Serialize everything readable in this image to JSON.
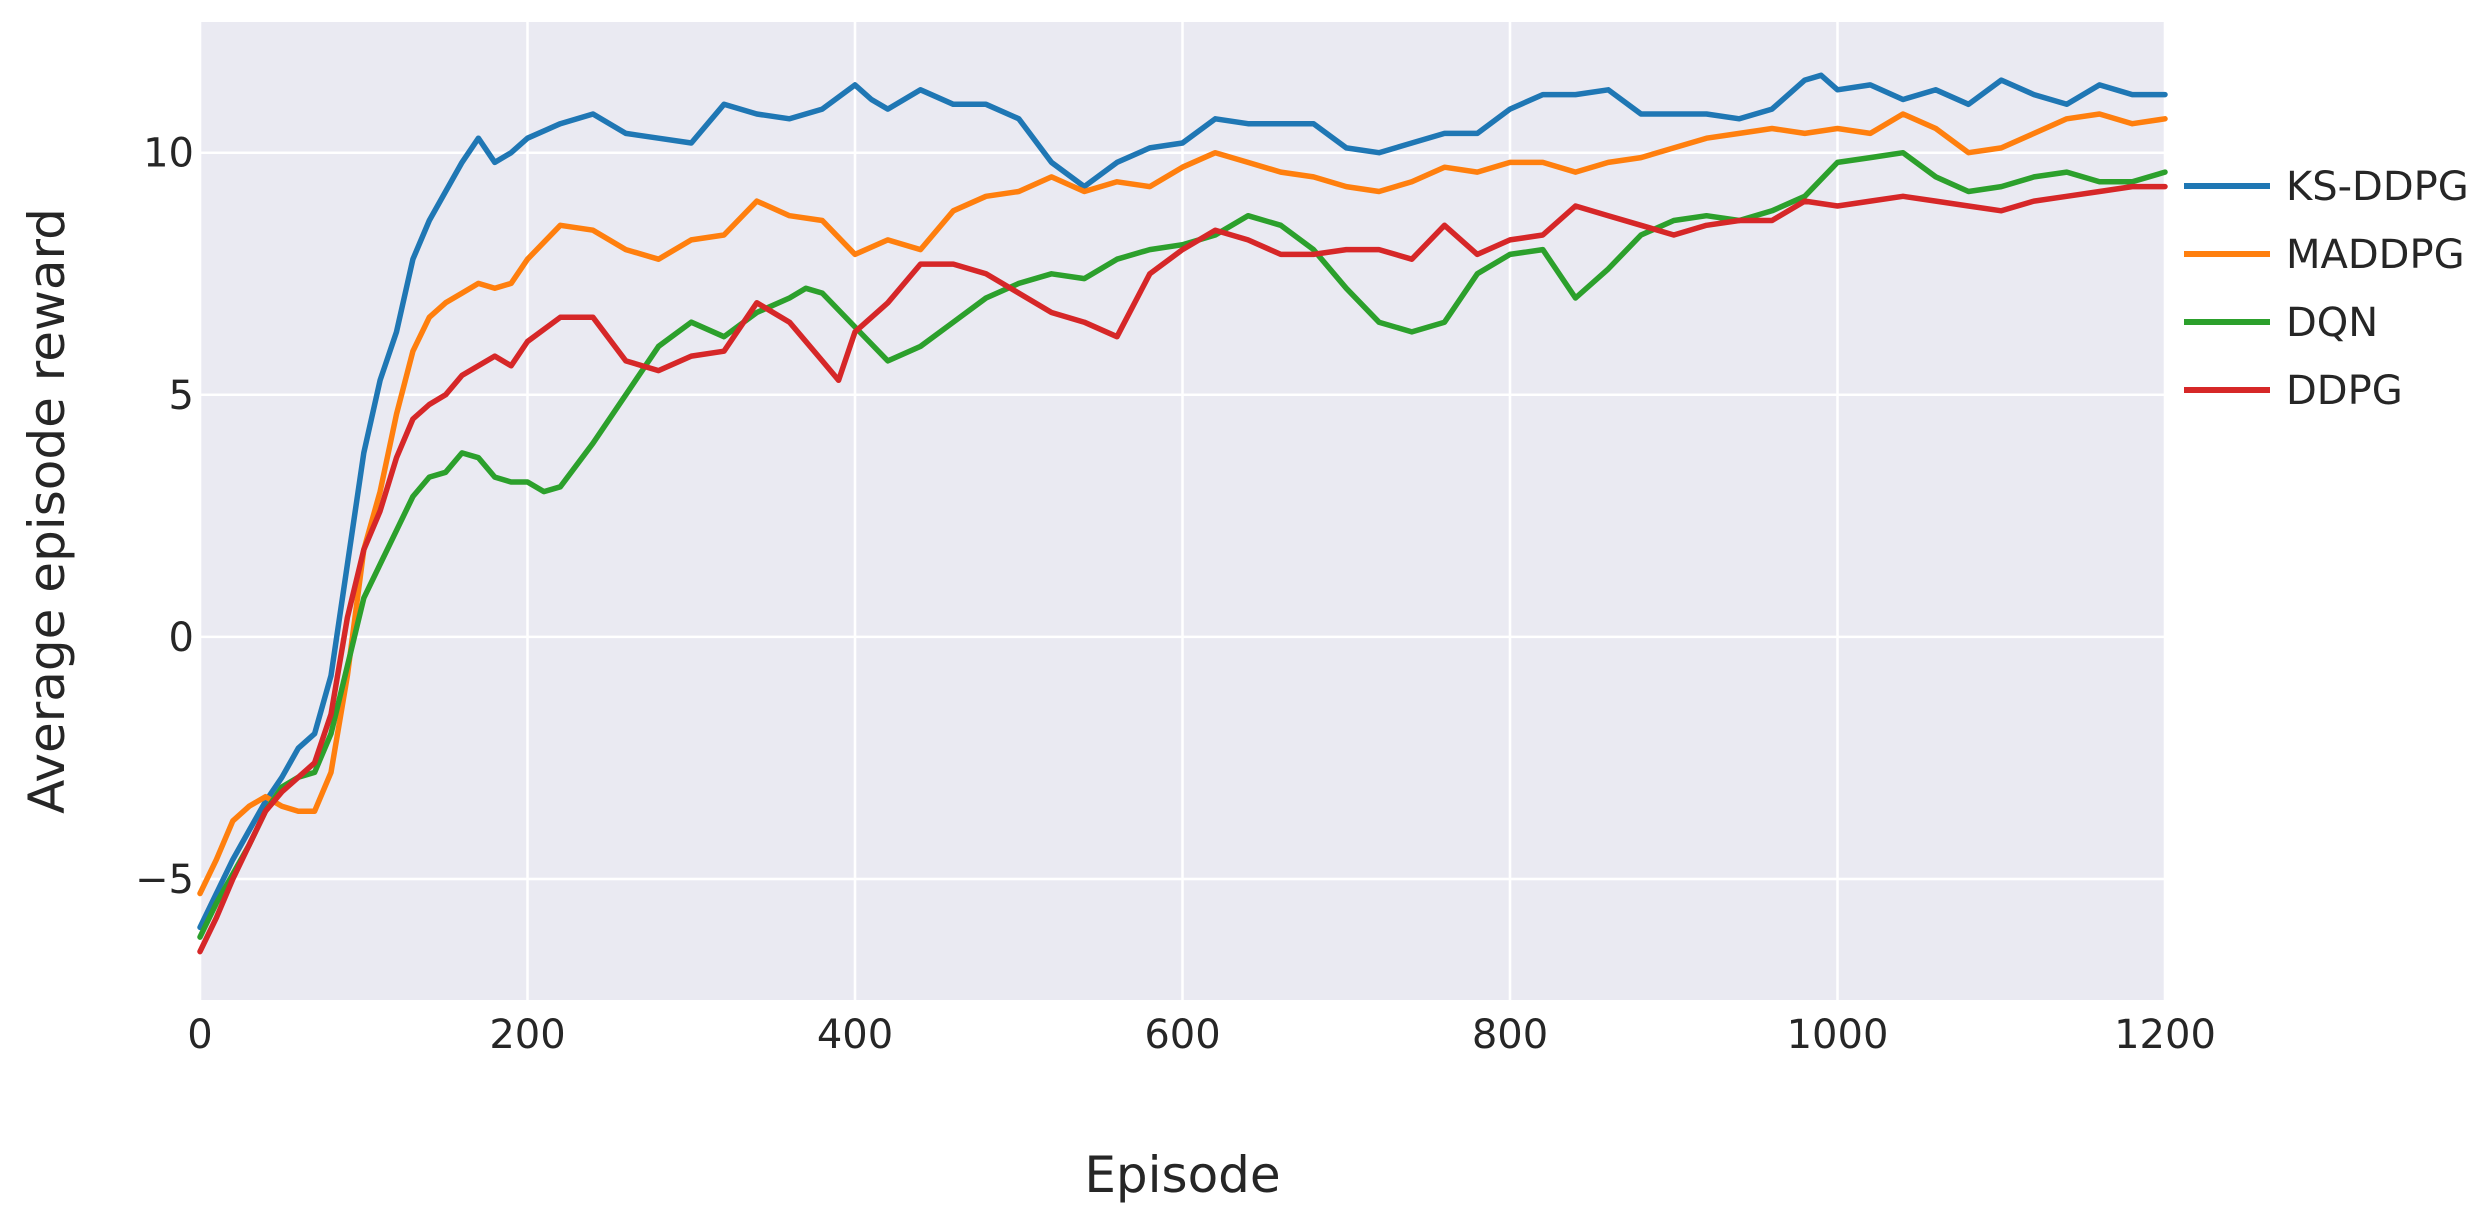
{
  "chart_data": {
    "type": "line",
    "title": "",
    "xlabel": "Episode",
    "ylabel": "Average episode reward",
    "xlim": [
      0,
      1200
    ],
    "ylim": [
      -7.5,
      12.7
    ],
    "xticks": [
      0,
      200,
      400,
      600,
      800,
      1000,
      1200
    ],
    "xtick_labels": [
      "0",
      "200",
      "400",
      "600",
      "800",
      "1000",
      "1200"
    ],
    "yticks": [
      -5,
      0,
      5,
      10
    ],
    "ytick_labels": [
      "−5",
      "0",
      "5",
      "10"
    ],
    "grid": true,
    "background": "#eaeaf2",
    "legend_position": "right",
    "series": [
      {
        "name": "KS-DDPG",
        "color": "#1f77b4",
        "x": [
          0,
          10,
          20,
          30,
          40,
          50,
          60,
          70,
          80,
          90,
          100,
          110,
          120,
          130,
          140,
          150,
          160,
          170,
          180,
          190,
          200,
          220,
          240,
          260,
          280,
          300,
          320,
          340,
          360,
          380,
          400,
          410,
          420,
          440,
          460,
          480,
          500,
          520,
          540,
          560,
          580,
          600,
          620,
          640,
          660,
          680,
          700,
          720,
          740,
          760,
          780,
          800,
          820,
          840,
          860,
          880,
          900,
          920,
          940,
          960,
          980,
          990,
          1000,
          1020,
          1040,
          1060,
          1080,
          1100,
          1120,
          1140,
          1160,
          1180,
          1200
        ],
        "y": [
          -6.0,
          -5.3,
          -4.6,
          -4.0,
          -3.4,
          -2.9,
          -2.3,
          -2.0,
          -0.8,
          1.5,
          3.8,
          5.3,
          6.3,
          7.8,
          8.6,
          9.2,
          9.8,
          10.3,
          9.8,
          10.0,
          10.3,
          10.6,
          10.8,
          10.4,
          10.3,
          10.2,
          11.0,
          10.8,
          10.7,
          10.9,
          11.4,
          11.1,
          10.9,
          11.3,
          11.0,
          11.0,
          10.7,
          9.8,
          9.3,
          9.8,
          10.1,
          10.2,
          10.7,
          10.6,
          10.6,
          10.6,
          10.1,
          10.0,
          10.2,
          10.4,
          10.4,
          10.9,
          11.2,
          11.2,
          11.3,
          10.8,
          10.8,
          10.8,
          10.7,
          10.9,
          11.5,
          11.6,
          11.3,
          11.4,
          11.1,
          11.3,
          11.0,
          11.5,
          11.2,
          11.0,
          11.4,
          11.2,
          11.2
        ]
      },
      {
        "name": "MADDPG",
        "color": "#ff7f0e",
        "x": [
          0,
          10,
          20,
          30,
          40,
          50,
          60,
          70,
          80,
          90,
          100,
          110,
          120,
          130,
          140,
          150,
          160,
          170,
          180,
          190,
          200,
          220,
          240,
          260,
          280,
          300,
          320,
          340,
          360,
          380,
          400,
          420,
          440,
          460,
          480,
          500,
          520,
          540,
          560,
          580,
          600,
          620,
          640,
          660,
          680,
          700,
          720,
          740,
          760,
          780,
          800,
          820,
          840,
          860,
          880,
          900,
          920,
          940,
          960,
          980,
          1000,
          1020,
          1040,
          1060,
          1080,
          1100,
          1120,
          1140,
          1160,
          1180,
          1200
        ],
        "y": [
          -5.3,
          -4.6,
          -3.8,
          -3.5,
          -3.3,
          -3.5,
          -3.6,
          -3.6,
          -2.8,
          -0.8,
          1.8,
          3.0,
          4.6,
          5.9,
          6.6,
          6.9,
          7.1,
          7.3,
          7.2,
          7.3,
          7.8,
          8.5,
          8.4,
          8.0,
          7.8,
          8.2,
          8.3,
          9.0,
          8.7,
          8.6,
          7.9,
          8.2,
          8.0,
          8.8,
          9.1,
          9.2,
          9.5,
          9.2,
          9.4,
          9.3,
          9.7,
          10.0,
          9.8,
          9.6,
          9.5,
          9.3,
          9.2,
          9.4,
          9.7,
          9.6,
          9.8,
          9.8,
          9.6,
          9.8,
          9.9,
          10.1,
          10.3,
          10.4,
          10.5,
          10.4,
          10.5,
          10.4,
          10.8,
          10.5,
          10.0,
          10.1,
          10.4,
          10.7,
          10.8,
          10.6,
          10.7
        ]
      },
      {
        "name": "DQN",
        "color": "#2ca02c",
        "x": [
          0,
          10,
          20,
          30,
          40,
          50,
          60,
          70,
          80,
          90,
          100,
          110,
          120,
          130,
          140,
          150,
          160,
          170,
          180,
          190,
          200,
          210,
          220,
          240,
          260,
          280,
          300,
          320,
          340,
          360,
          370,
          380,
          400,
          420,
          440,
          460,
          480,
          500,
          520,
          540,
          560,
          580,
          600,
          620,
          640,
          660,
          680,
          700,
          720,
          740,
          760,
          780,
          800,
          820,
          840,
          860,
          880,
          900,
          920,
          940,
          960,
          980,
          1000,
          1020,
          1040,
          1060,
          1080,
          1100,
          1120,
          1140,
          1160,
          1180,
          1200
        ],
        "y": [
          -6.2,
          -5.5,
          -4.9,
          -4.3,
          -3.6,
          -3.1,
          -2.9,
          -2.8,
          -2.0,
          -0.6,
          0.8,
          1.5,
          2.2,
          2.9,
          3.3,
          3.4,
          3.8,
          3.7,
          3.3,
          3.2,
          3.2,
          3.0,
          3.1,
          4.0,
          5.0,
          6.0,
          6.5,
          6.2,
          6.7,
          7.0,
          7.2,
          7.1,
          6.4,
          5.7,
          6.0,
          6.5,
          7.0,
          7.3,
          7.5,
          7.4,
          7.8,
          8.0,
          8.1,
          8.3,
          8.7,
          8.5,
          8.0,
          7.2,
          6.5,
          6.3,
          6.5,
          7.5,
          7.9,
          8.0,
          7.0,
          7.6,
          8.3,
          8.6,
          8.7,
          8.6,
          8.8,
          9.1,
          9.8,
          9.9,
          10.0,
          9.5,
          9.2,
          9.3,
          9.5,
          9.6,
          9.4,
          9.4,
          9.6
        ]
      },
      {
        "name": "DDPG",
        "color": "#d62728",
        "x": [
          0,
          10,
          20,
          30,
          40,
          50,
          60,
          70,
          80,
          90,
          100,
          110,
          120,
          130,
          140,
          150,
          160,
          170,
          180,
          190,
          200,
          220,
          240,
          260,
          280,
          300,
          320,
          340,
          360,
          380,
          390,
          400,
          420,
          440,
          460,
          480,
          500,
          520,
          540,
          560,
          580,
          600,
          620,
          640,
          660,
          680,
          700,
          720,
          740,
          760,
          780,
          800,
          820,
          840,
          860,
          880,
          900,
          920,
          940,
          960,
          980,
          1000,
          1020,
          1040,
          1060,
          1080,
          1100,
          1120,
          1140,
          1160,
          1180,
          1200
        ],
        "y": [
          -6.5,
          -5.8,
          -5.0,
          -4.3,
          -3.6,
          -3.2,
          -2.9,
          -2.6,
          -1.6,
          0.4,
          1.8,
          2.6,
          3.7,
          4.5,
          4.8,
          5.0,
          5.4,
          5.6,
          5.8,
          5.6,
          6.1,
          6.6,
          6.6,
          5.7,
          5.5,
          5.8,
          5.9,
          6.9,
          6.5,
          5.7,
          5.3,
          6.3,
          6.9,
          7.7,
          7.7,
          7.5,
          7.1,
          6.7,
          6.5,
          6.2,
          7.5,
          8.0,
          8.4,
          8.2,
          7.9,
          7.9,
          8.0,
          8.0,
          7.8,
          8.5,
          7.9,
          8.2,
          8.3,
          8.9,
          8.7,
          8.5,
          8.3,
          8.5,
          8.6,
          8.6,
          9.0,
          8.9,
          9.0,
          9.1,
          9.0,
          8.9,
          8.8,
          9.0,
          9.1,
          9.2,
          9.3,
          9.3
        ]
      }
    ]
  }
}
